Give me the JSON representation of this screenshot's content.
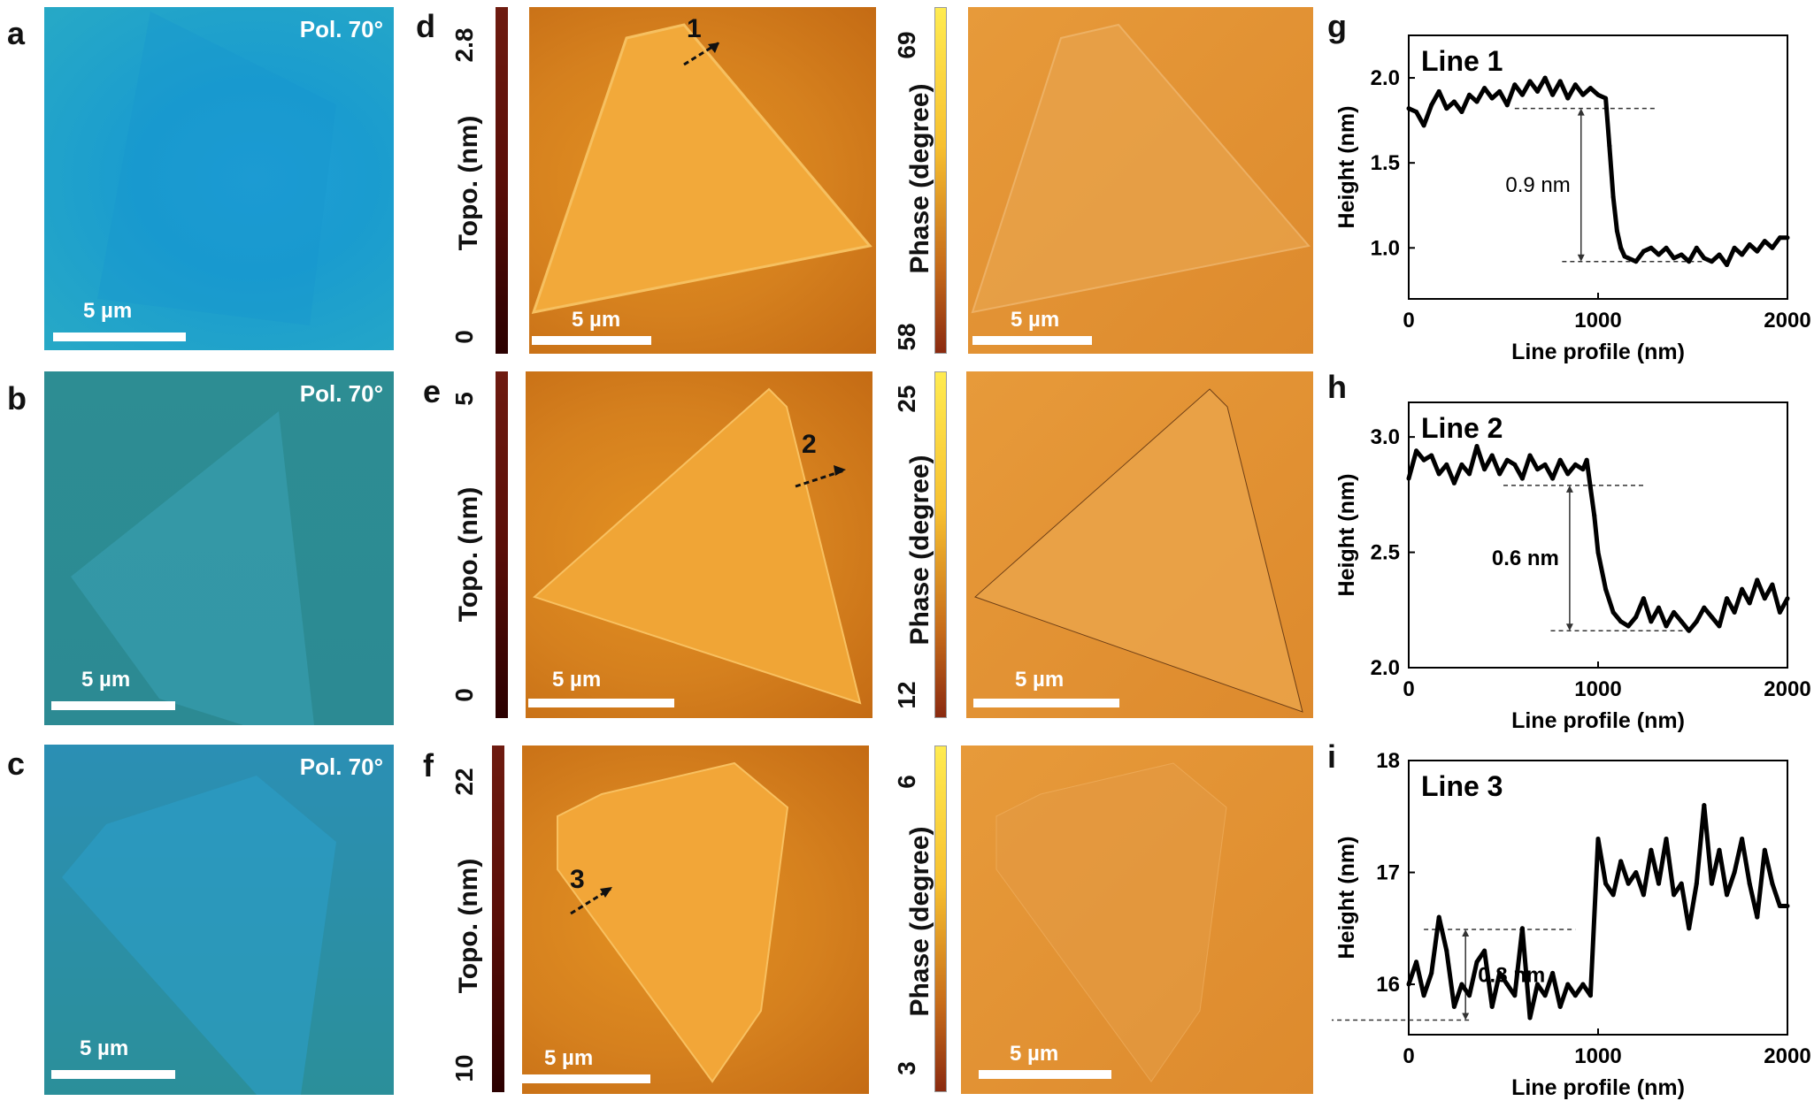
{
  "panels": {
    "a": "a",
    "b": "b",
    "c": "c",
    "d": "d",
    "e": "e",
    "f": "f",
    "g": "g",
    "h": "h",
    "i": "i"
  },
  "optical": {
    "polarization_label": "Pol. 70°",
    "scale_label": "5 µm"
  },
  "afm": {
    "topo_axis_label": "Topo. (nm)",
    "phase_axis_label": "Phase (degree)",
    "scale_label": "5 µm",
    "row_d": {
      "topo_max": "2.8",
      "topo_min": "0",
      "phase_max": "69",
      "phase_min": "58",
      "line_marker": "1"
    },
    "row_e": {
      "topo_max": "5",
      "topo_min": "0",
      "phase_max": "25",
      "phase_min": "12",
      "line_marker": "2"
    },
    "row_f": {
      "topo_max": "22",
      "topo_min": "10",
      "phase_max": "6",
      "phase_min": "3",
      "line_marker": "3"
    }
  },
  "colors": {
    "topo_colormap": [
      "#5a0e08",
      "#c46b14",
      "#f2b040"
    ],
    "phase_colormap": [
      "#8a2a10",
      "#f7c030",
      "#ffeb50"
    ],
    "profile_line": "#000000"
  },
  "chart_data": [
    {
      "type": "line",
      "panel": "g",
      "title": "Line 1",
      "xlabel": "Line profile (nm)",
      "ylabel": "Height (nm)",
      "xlim": [
        0,
        2000
      ],
      "ylim": [
        0.7,
        2.25
      ],
      "xticks": [
        "0",
        "1000",
        "2000"
      ],
      "yticks": [
        "1.0",
        "1.5",
        "2.0"
      ],
      "step_annotation": "0.9 nm",
      "step_levels": [
        1.82,
        0.92
      ],
      "x": [
        0,
        40,
        80,
        120,
        160,
        200,
        240,
        280,
        320,
        360,
        400,
        440,
        480,
        520,
        560,
        600,
        640,
        680,
        720,
        760,
        800,
        840,
        880,
        920,
        960,
        1000,
        1040,
        1060,
        1080,
        1100,
        1120,
        1140,
        1160,
        1200,
        1240,
        1280,
        1320,
        1360,
        1400,
        1440,
        1480,
        1520,
        1560,
        1600,
        1640,
        1680,
        1720,
        1760,
        1800,
        1840,
        1880,
        1920,
        1960,
        2000
      ],
      "y": [
        1.82,
        1.8,
        1.72,
        1.84,
        1.92,
        1.82,
        1.86,
        1.8,
        1.9,
        1.86,
        1.94,
        1.88,
        1.92,
        1.84,
        1.96,
        1.9,
        1.98,
        1.92,
        2.0,
        1.9,
        1.98,
        1.88,
        1.96,
        1.9,
        1.94,
        1.9,
        1.88,
        1.6,
        1.3,
        1.1,
        1.0,
        0.95,
        0.94,
        0.92,
        0.98,
        1.0,
        0.96,
        1.0,
        0.94,
        0.96,
        0.92,
        1.0,
        0.94,
        0.92,
        0.96,
        0.9,
        1.0,
        0.96,
        1.02,
        0.98,
        1.04,
        1.0,
        1.06,
        1.06
      ]
    },
    {
      "type": "line",
      "panel": "h",
      "title": "Line 2",
      "xlabel": "Line profile (nm)",
      "ylabel": "Height (nm)",
      "xlim": [
        0,
        2000
      ],
      "ylim": [
        2.0,
        3.15
      ],
      "xticks": [
        "0",
        "1000",
        "2000"
      ],
      "yticks": [
        "2.0",
        "2.5",
        "3.0"
      ],
      "step_annotation": "0.6 nm",
      "step_levels": [
        2.79,
        2.16
      ],
      "x": [
        0,
        40,
        80,
        120,
        160,
        200,
        240,
        280,
        320,
        360,
        400,
        440,
        480,
        520,
        560,
        600,
        640,
        680,
        720,
        760,
        800,
        840,
        880,
        920,
        940,
        960,
        980,
        1000,
        1040,
        1080,
        1120,
        1160,
        1200,
        1240,
        1280,
        1320,
        1360,
        1400,
        1440,
        1480,
        1520,
        1560,
        1600,
        1640,
        1680,
        1720,
        1760,
        1800,
        1840,
        1880,
        1920,
        1960,
        2000
      ],
      "y": [
        2.82,
        2.94,
        2.9,
        2.92,
        2.84,
        2.88,
        2.8,
        2.88,
        2.84,
        2.96,
        2.86,
        2.92,
        2.84,
        2.9,
        2.88,
        2.82,
        2.92,
        2.86,
        2.88,
        2.82,
        2.9,
        2.84,
        2.88,
        2.86,
        2.9,
        2.78,
        2.66,
        2.5,
        2.34,
        2.24,
        2.2,
        2.18,
        2.22,
        2.3,
        2.2,
        2.26,
        2.18,
        2.24,
        2.2,
        2.16,
        2.2,
        2.26,
        2.22,
        2.18,
        2.3,
        2.24,
        2.34,
        2.28,
        2.38,
        2.3,
        2.36,
        2.24,
        2.3
      ]
    },
    {
      "type": "line",
      "panel": "i",
      "title": "Line 3",
      "xlabel": "Line profile (nm)",
      "ylabel": "Height (nm)",
      "xlim": [
        0,
        2000
      ],
      "ylim": [
        15.55,
        18.0
      ],
      "xticks": [
        "0",
        "1000",
        "2000"
      ],
      "yticks": [
        "16",
        "17",
        "18"
      ],
      "step_annotation": "0.8 nm",
      "step_levels": [
        16.49,
        15.68
      ],
      "x": [
        0,
        40,
        80,
        120,
        160,
        200,
        240,
        280,
        320,
        360,
        400,
        440,
        480,
        520,
        560,
        600,
        640,
        680,
        720,
        760,
        800,
        840,
        880,
        920,
        960,
        1000,
        1040,
        1080,
        1120,
        1160,
        1200,
        1240,
        1280,
        1320,
        1360,
        1400,
        1440,
        1480,
        1520,
        1560,
        1600,
        1640,
        1680,
        1720,
        1760,
        1800,
        1840,
        1880,
        1920,
        1960,
        2000
      ],
      "y": [
        16.0,
        16.2,
        15.9,
        16.1,
        16.6,
        16.3,
        15.8,
        16.0,
        15.9,
        16.2,
        16.3,
        15.8,
        16.1,
        16.0,
        15.9,
        16.5,
        15.7,
        16.0,
        15.9,
        16.1,
        15.8,
        16.0,
        15.9,
        16.0,
        15.9,
        17.3,
        16.9,
        16.8,
        17.1,
        16.9,
        17.0,
        16.8,
        17.2,
        16.9,
        17.3,
        16.8,
        16.9,
        16.5,
        16.9,
        17.6,
        16.9,
        17.2,
        16.8,
        17.0,
        17.3,
        16.9,
        16.6,
        17.2,
        16.9,
        16.7,
        16.7
      ]
    }
  ]
}
